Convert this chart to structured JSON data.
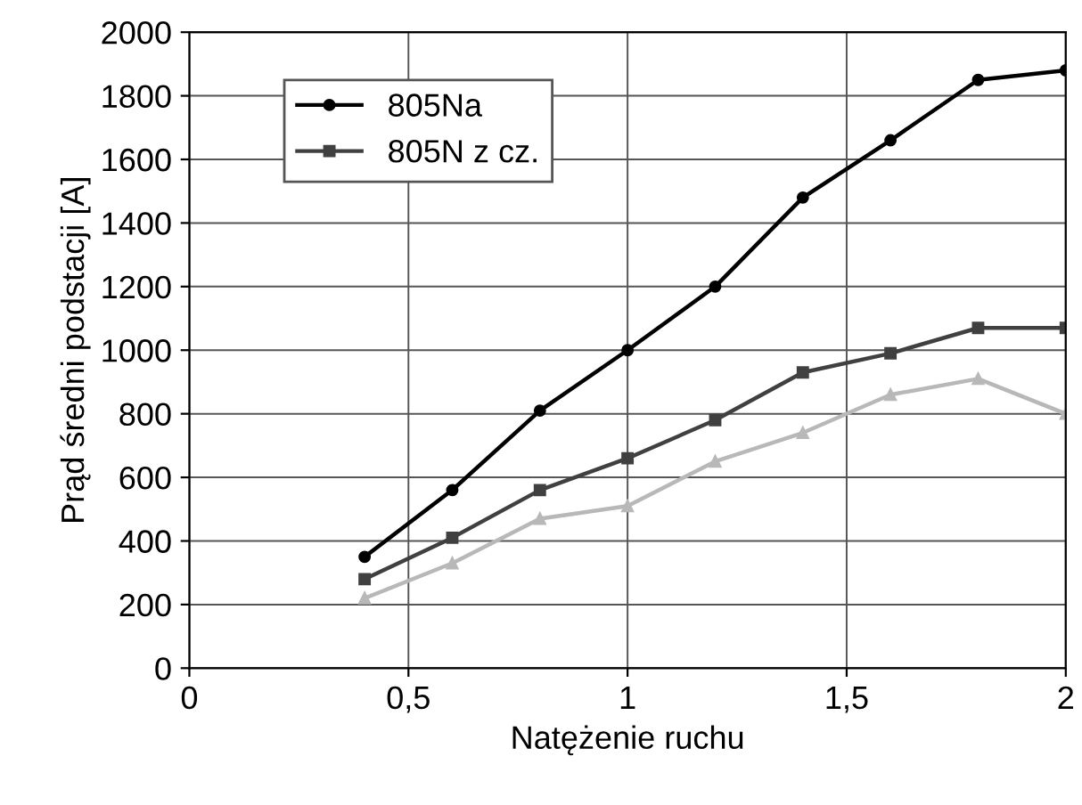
{
  "chart_data": {
    "type": "line",
    "xlabel": "Natężenie ruchu",
    "ylabel": "Prąd średni podstacji [A]",
    "x": [
      0.4,
      0.6,
      0.8,
      1.0,
      1.2,
      1.4,
      1.6,
      1.8,
      2.0
    ],
    "series": [
      {
        "name": "805Na",
        "color": "#000000",
        "marker": "circle",
        "values": [
          350,
          560,
          810,
          1000,
          1200,
          1480,
          1660,
          1850,
          1880
        ]
      },
      {
        "name": "805N z cz.",
        "color": "#404040",
        "marker": "square",
        "values": [
          280,
          410,
          560,
          660,
          780,
          930,
          990,
          1070,
          1070
        ]
      },
      {
        "color": "#b8b8b8",
        "marker": "triangle",
        "values": [
          220,
          330,
          470,
          510,
          650,
          740,
          860,
          910,
          800
        ]
      }
    ],
    "xlim": [
      0,
      2
    ],
    "xticks": [
      0,
      {
        "value": 0.5,
        "label": "0,5"
      },
      1,
      {
        "value": 1.5,
        "label": "1,5"
      },
      2
    ],
    "ylim": [
      0,
      2000
    ],
    "yticks": [
      0,
      200,
      400,
      600,
      800,
      1000,
      1200,
      1400,
      1600,
      1800,
      2000
    ],
    "grid": true,
    "legend": "top left",
    "line_style": "solid"
  }
}
